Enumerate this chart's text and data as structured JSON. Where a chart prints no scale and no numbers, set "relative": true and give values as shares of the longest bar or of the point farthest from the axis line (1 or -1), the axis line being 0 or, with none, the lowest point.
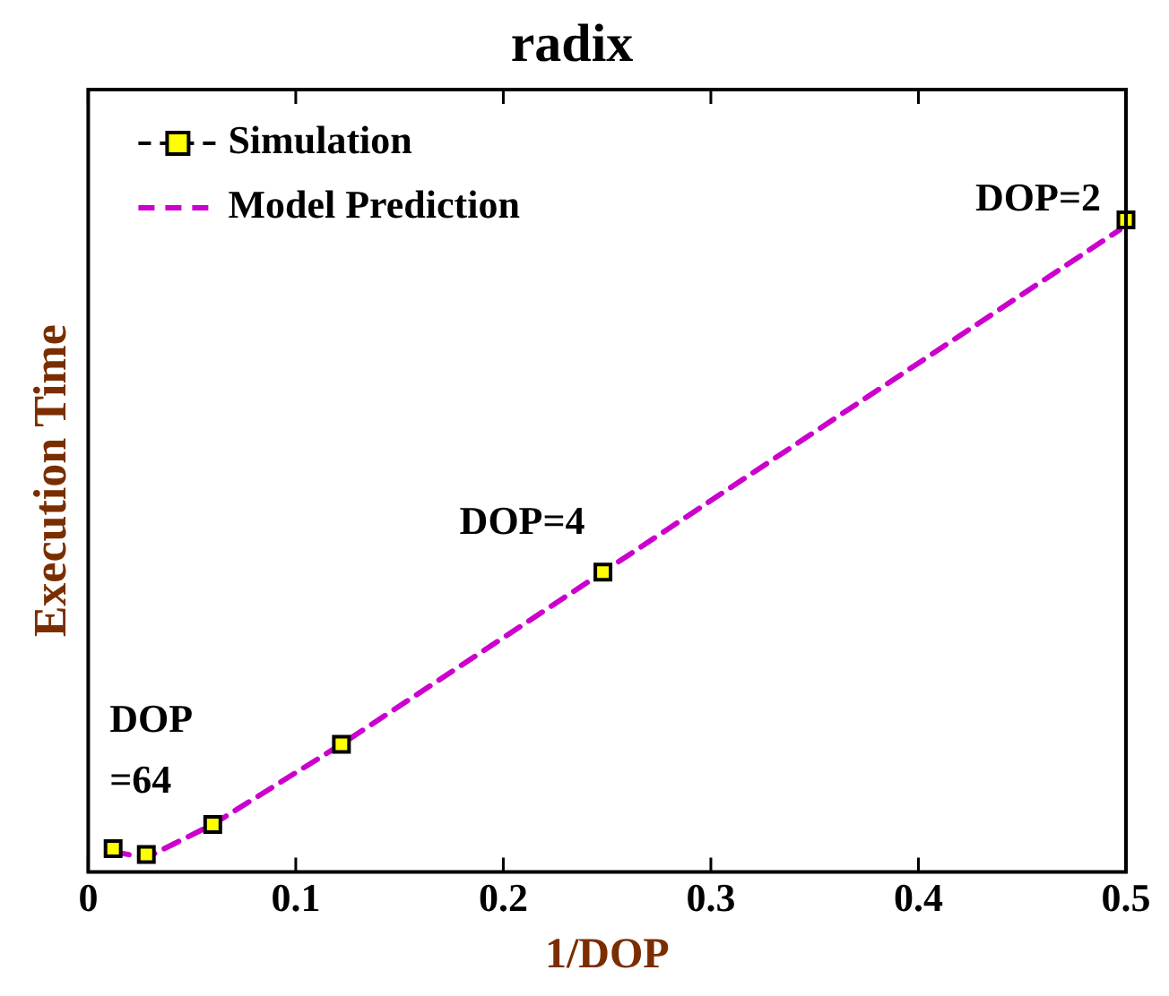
{
  "chart_data": {
    "type": "scatter",
    "title": "radix",
    "xlabel": "1/DOP",
    "ylabel": "Execution Time",
    "relative": true,
    "xlim": [
      0,
      0.5
    ],
    "xticks": [
      0,
      0.1,
      0.2,
      0.3,
      0.4,
      0.5
    ],
    "legend": "top left",
    "grid": false,
    "series": [
      {
        "name": "Simulation",
        "color": "#ffff00",
        "marker": "square",
        "x": [
          0.012,
          0.028,
          0.06,
          0.122,
          0.248,
          0.5
        ],
        "values": [
          0.036,
          0.027,
          0.073,
          0.196,
          0.46,
          1
        ]
      },
      {
        "name": "Model Prediction",
        "type": "line",
        "color": "#cc00cc",
        "line_style": "dashed",
        "marker": "none",
        "x": [
          0.012,
          0.028,
          0.06,
          0.122,
          0.248,
          0.497
        ],
        "values": [
          0.031,
          0.022,
          0.073,
          0.196,
          0.46,
          0.985
        ]
      }
    ],
    "annotations": [
      {
        "text": "DOP=2",
        "x": 0.5,
        "y": 1
      },
      {
        "text": "DOP=4",
        "x": 0.248,
        "y": 0.46
      },
      {
        "text": "DOP\n=64",
        "x": 0.012,
        "y": 0.036
      }
    ]
  }
}
